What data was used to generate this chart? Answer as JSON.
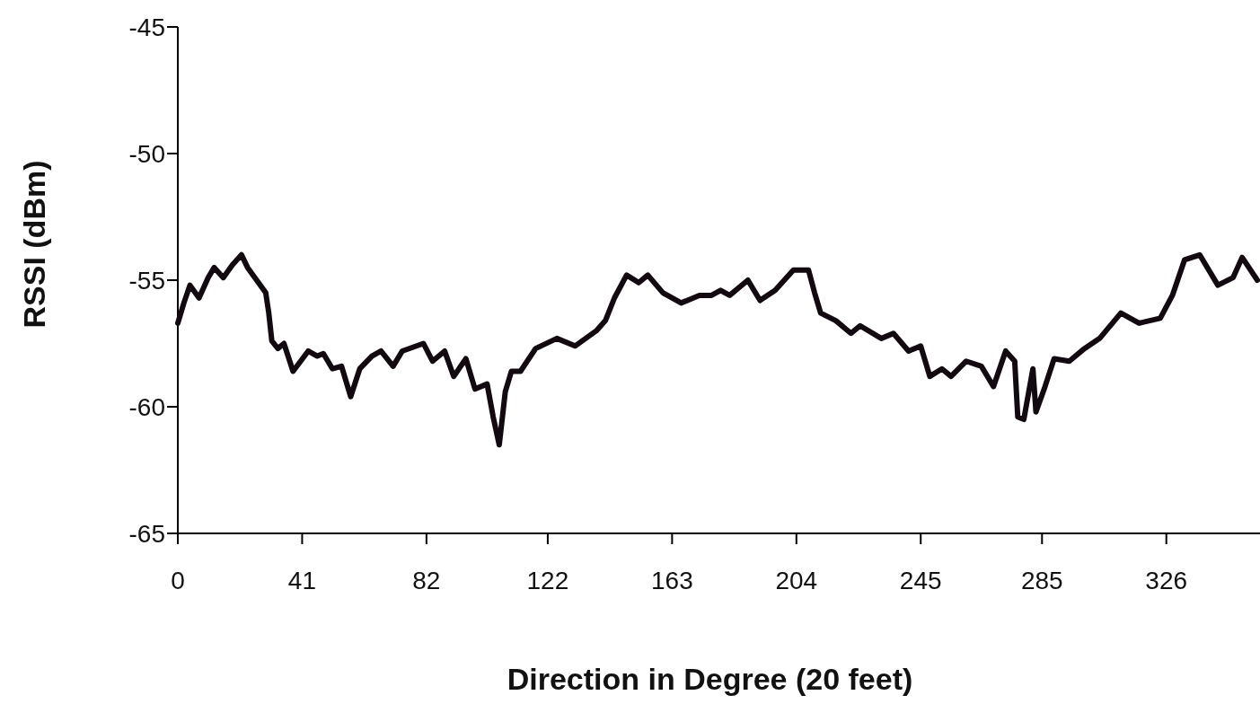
{
  "chart_data": {
    "type": "line",
    "xlabel": "Direction in Degree (20 feet)",
    "ylabel": "RSSI (dBm)",
    "xlim": [
      0,
      356
    ],
    "xticks": [
      0,
      41,
      82,
      122,
      163,
      204,
      245,
      285,
      326
    ],
    "ylim": [
      -65,
      -45
    ],
    "yticks": [
      -65,
      -60,
      -55,
      -50,
      -45
    ],
    "grid": false,
    "marker": "none",
    "line_style": "solid",
    "series": [
      {
        "color": "#120a10",
        "x": [
          0,
          2,
          4,
          7,
          10,
          12,
          15,
          18,
          21,
          23,
          26,
          29,
          30,
          31,
          33,
          35,
          38,
          43,
          46,
          48,
          51,
          54,
          57,
          60,
          64,
          67,
          71,
          74,
          81,
          84,
          88,
          91,
          95,
          98,
          102,
          104,
          106,
          108,
          110,
          113,
          118,
          125,
          131,
          138,
          141,
          144,
          148,
          152,
          155,
          160,
          166,
          172,
          176,
          179,
          182,
          188,
          192,
          197,
          203,
          208,
          210,
          212,
          217,
          222,
          225,
          232,
          236,
          241,
          245,
          248,
          252,
          255,
          260,
          265,
          269,
          273,
          276,
          277,
          279,
          282,
          283,
          286,
          289,
          294,
          299,
          304,
          311,
          317,
          324,
          328,
          332,
          337,
          343,
          348,
          351,
          356
        ],
        "values": [
          -56.7,
          -55.9,
          -55.2,
          -55.7,
          -54.9,
          -54.5,
          -54.9,
          -54.4,
          -54.0,
          -54.5,
          -55.0,
          -55.5,
          -56.3,
          -57.4,
          -57.7,
          -57.5,
          -58.6,
          -57.8,
          -58.0,
          -57.9,
          -58.5,
          -58.4,
          -59.6,
          -58.5,
          -58.0,
          -57.8,
          -58.4,
          -57.8,
          -57.5,
          -58.2,
          -57.8,
          -58.8,
          -58.1,
          -59.3,
          -59.1,
          -60.4,
          -61.5,
          -59.4,
          -58.6,
          -58.6,
          -57.7,
          -57.3,
          -57.6,
          -57.0,
          -56.6,
          -55.7,
          -54.8,
          -55.1,
          -54.8,
          -55.5,
          -55.9,
          -55.6,
          -55.6,
          -55.4,
          -55.6,
          -55.0,
          -55.8,
          -55.4,
          -54.6,
          -54.6,
          -55.5,
          -56.3,
          -56.6,
          -57.1,
          -56.8,
          -57.3,
          -57.1,
          -57.8,
          -57.6,
          -58.8,
          -58.5,
          -58.8,
          -58.2,
          -58.4,
          -59.2,
          -57.8,
          -58.2,
          -60.4,
          -60.5,
          -58.5,
          -60.2,
          -59.2,
          -58.1,
          -58.2,
          -57.7,
          -57.3,
          -56.3,
          -56.7,
          -56.5,
          -55.6,
          -54.2,
          -54.0,
          -55.2,
          -54.9,
          -54.1,
          -55.0
        ]
      }
    ]
  }
}
